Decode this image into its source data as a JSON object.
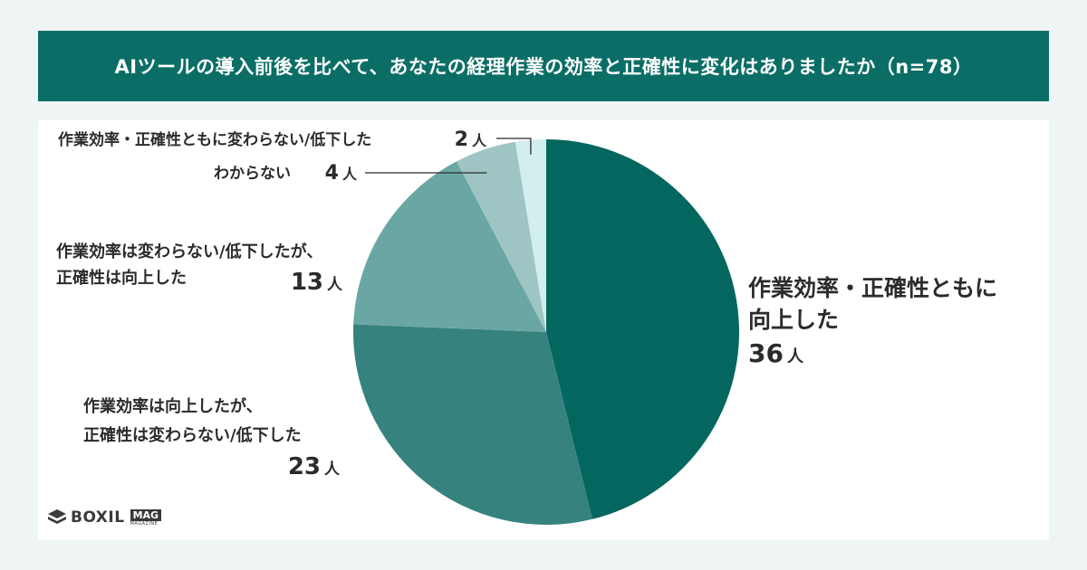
{
  "title": "AIツールの導入前後を比べて、あなたの経理作業の効率と正確性に変化はありましたか（n=78）",
  "unit": "人",
  "chart_data": {
    "type": "pie",
    "title": "AIツールの導入前後を比べて、あなたの経理作業の効率と正確性に変化はありましたか（n=78）",
    "n": 78,
    "slices": [
      {
        "label_lines": [
          "作業効率・正確性ともに",
          "向上した"
        ],
        "value": 36,
        "color": "#03665f"
      },
      {
        "label_lines": [
          "作業効率は向上したが、",
          "正確性は変わらない/低下した"
        ],
        "value": 23,
        "color": "#36827e"
      },
      {
        "label_lines": [
          "作業効率は変わらない/低下したが、",
          "正確性は向上した"
        ],
        "value": 13,
        "color": "#6aa7a4"
      },
      {
        "label_lines": [
          "わからない"
        ],
        "value": 4,
        "color": "#9ec5c3"
      },
      {
        "label_lines": [
          "作業効率・正確性ともに変わらない/低下した"
        ],
        "value": 2,
        "color": "#d2eeee"
      }
    ]
  },
  "logo": {
    "text": "BOXIL",
    "badge": "MAG",
    "sub": "MAGAZINE"
  }
}
